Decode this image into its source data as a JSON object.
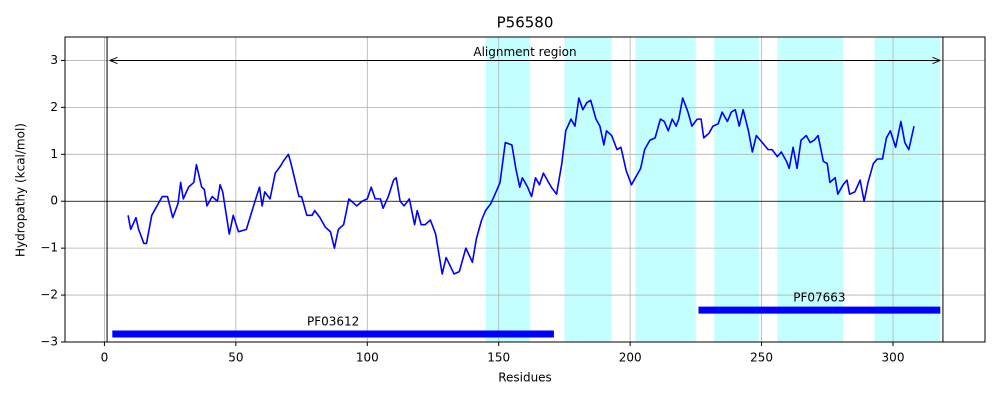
{
  "chart_data": {
    "type": "line",
    "title": "P56580",
    "x_label": "Residues",
    "y_label": "Hydropathy (kcal/mol)",
    "xlim": [
      -15,
      335
    ],
    "ylim": [
      -3,
      3.5
    ],
    "xticks": [
      0,
      50,
      100,
      150,
      200,
      250,
      300
    ],
    "yticks": [
      {
        "value": -3,
        "label": "−3"
      },
      {
        "value": -2,
        "label": "−2"
      },
      {
        "value": -1,
        "label": "−1"
      },
      0,
      1,
      2,
      3
    ],
    "grid": true,
    "series": [
      {
        "color": "#0000ff",
        "x": [
          9,
          10,
          12,
          13,
          15,
          16,
          18,
          20,
          22,
          24,
          26,
          28,
          29,
          30,
          32,
          34,
          35,
          37,
          38,
          39,
          41,
          43,
          44,
          45,
          47.5,
          49,
          51,
          54,
          57,
          59,
          60,
          61,
          63,
          65,
          67,
          68,
          70,
          71,
          74,
          75,
          77,
          79,
          80,
          82,
          84,
          86,
          87.5,
          89,
          91,
          93,
          95,
          96,
          98,
          100,
          101.5,
          103,
          105,
          106,
          108,
          110,
          111,
          112.5,
          114,
          116,
          118,
          119,
          120.5,
          122,
          124,
          126,
          128.5,
          130,
          133,
          135,
          137.5,
          140,
          141.5,
          143.5,
          145,
          147,
          149,
          150.5,
          152.5,
          155,
          156.5,
          158,
          159,
          161,
          162.5,
          164,
          165.5,
          167,
          169,
          170,
          172,
          174,
          175.5,
          177.5,
          179,
          180.5,
          182,
          183.5,
          185,
          187,
          188.5,
          190,
          191,
          193,
          195,
          196.5,
          198.5,
          200.5,
          202,
          204,
          205.5,
          207.5,
          209.5,
          211.5,
          213,
          214.5,
          216,
          217.5,
          218.5,
          220,
          222,
          223.5,
          225.5,
          227,
          228,
          230,
          231.5,
          233.5,
          235,
          237,
          238.5,
          240,
          241.5,
          243,
          245,
          246.5,
          248,
          249.5,
          251,
          252.5,
          254,
          256,
          257.5,
          259.5,
          260.5,
          262,
          263.5,
          265,
          267,
          268.5,
          270,
          271.5,
          273.5,
          275,
          276,
          278,
          279,
          281,
          282.5,
          283.5,
          285.5,
          287.5,
          289,
          290.5,
          292.5,
          294,
          296,
          297.5,
          299,
          301,
          303,
          304.5,
          306,
          308
        ],
        "values": [
          -0.3,
          -0.6,
          -0.35,
          -0.6,
          -0.9,
          -0.9,
          -0.3,
          -0.1,
          0.1,
          0.1,
          -0.35,
          -0.05,
          0.4,
          0.05,
          0.3,
          0.4,
          0.78,
          0.3,
          0.25,
          -0.1,
          0.1,
          0.0,
          0.35,
          0.2,
          -0.7,
          -0.3,
          -0.65,
          -0.6,
          -0.05,
          0.3,
          -0.1,
          0.2,
          0.05,
          0.6,
          0.75,
          0.85,
          1.0,
          0.8,
          0.1,
          0.1,
          -0.3,
          -0.3,
          -0.2,
          -0.35,
          -0.55,
          -0.65,
          -1.0,
          -0.6,
          -0.5,
          0.05,
          -0.05,
          -0.1,
          0.0,
          0.05,
          0.3,
          0.05,
          0.05,
          -0.15,
          0.1,
          0.45,
          0.5,
          0.0,
          -0.1,
          0.05,
          -0.5,
          -0.2,
          -0.5,
          -0.5,
          -0.4,
          -0.7,
          -1.55,
          -1.2,
          -1.55,
          -1.5,
          -1.0,
          -1.3,
          -0.8,
          -0.4,
          -0.2,
          -0.05,
          0.2,
          0.4,
          1.25,
          1.2,
          0.7,
          0.3,
          0.5,
          0.3,
          0.1,
          0.5,
          0.35,
          0.6,
          0.4,
          0.3,
          0.15,
          0.8,
          1.5,
          1.75,
          1.6,
          2.2,
          1.95,
          2.1,
          2.15,
          1.75,
          1.6,
          1.2,
          1.5,
          1.4,
          1.1,
          1.15,
          0.65,
          0.35,
          0.5,
          0.7,
          1.1,
          1.3,
          1.35,
          1.75,
          1.7,
          1.5,
          1.75,
          1.6,
          1.75,
          2.2,
          1.9,
          1.6,
          1.75,
          1.75,
          1.35,
          1.45,
          1.6,
          1.65,
          1.9,
          1.7,
          1.9,
          1.95,
          1.6,
          1.95,
          1.5,
          1.05,
          1.4,
          1.3,
          1.2,
          1.1,
          1.1,
          0.95,
          1.05,
          0.85,
          0.7,
          1.15,
          0.7,
          1.3,
          1.4,
          1.25,
          1.3,
          1.4,
          0.85,
          0.8,
          0.4,
          0.5,
          0.15,
          0.35,
          0.45,
          0.15,
          0.2,
          0.45,
          0.0,
          0.4,
          0.8,
          0.9,
          0.9,
          1.35,
          1.5,
          1.15,
          1.7,
          1.25,
          1.1,
          1.6
        ]
      }
    ],
    "shaded_regions": {
      "color": "#c4ffff",
      "ranges": [
        [
          145,
          162
        ],
        [
          175,
          193
        ],
        [
          202,
          225
        ],
        [
          232,
          249
        ],
        [
          256,
          281
        ],
        [
          293,
          318
        ]
      ]
    },
    "vlines": [
      1,
      319
    ],
    "hline": 0,
    "arrow": {
      "text": "Alignment region",
      "x": [
        2,
        318
      ],
      "y": 3
    },
    "domains": {
      "color": "#0000ff",
      "items": [
        {
          "name": "PF03612",
          "start": 3,
          "end": 171,
          "y": -2.83
        },
        {
          "name": "PF07663",
          "start": 226,
          "end": 318,
          "y": -2.32
        }
      ]
    }
  }
}
